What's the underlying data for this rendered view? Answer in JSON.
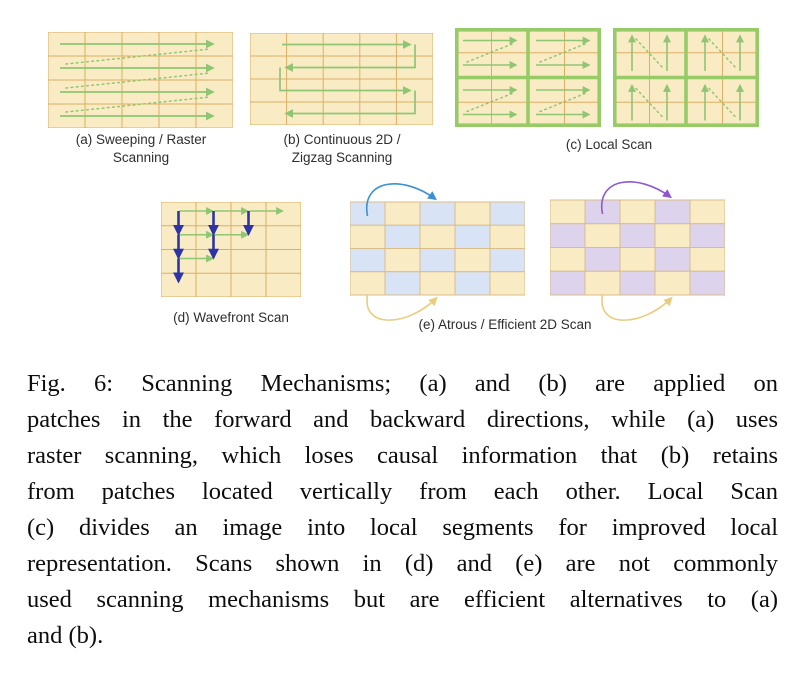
{
  "figure": {
    "caption_lines": [
      "Fig. 6: Scanning Mechanisms; (a) and (b) are applied on",
      "patches in the forward and backward directions, while (a) uses",
      "raster scanning, which loses causal information that (b) retains",
      "from patches located vertically from each other. Local Scan",
      "(c) divides an image into local segments for improved local",
      "representation. Scans shown in (d) and (e) are not commonly",
      "used scanning mechanisms but are efficient alternatives to (a)",
      "and (b)."
    ]
  },
  "panels": {
    "a": {
      "label_line1": "(a) Sweeping / Raster",
      "label_line2": "Scanning"
    },
    "b": {
      "label_line1": "(b) Continuous 2D /",
      "label_line2": "Zigzag Scanning"
    },
    "c": {
      "label": "(c) Local Scan"
    },
    "d": {
      "label": "(d) Wavefront Scan"
    },
    "e": {
      "label": "(e) Atrous / Efficient 2D Scan"
    }
  },
  "colors": {
    "cell_fill": "#f9ecc4",
    "cell_border": "#dcae66",
    "scan_green": "#8fc573",
    "local_border_green": "#97cb67",
    "wavefront_blue": "#2c35a3",
    "atrous_blue_cell": "#d8e4f6",
    "atrous_purple_cell": "#ddd3ec",
    "atrous_blue_arrow": "#3d8fd6",
    "atrous_purple_arrow": "#9058ce",
    "atrous_yellow_arrow": "#e9cd7c",
    "checker_cell_border": "#d9bd8a",
    "label_text": "#2e2e2e",
    "caption_text": "#0d0d0d"
  },
  "diagrams": {
    "grid_a": {
      "type": "raster",
      "cols": 5,
      "rows": 4,
      "arrow_direction": "right",
      "return_links": "dotted-diagonal"
    },
    "grid_b": {
      "type": "zigzag",
      "cols": 5,
      "rows": 4,
      "path": "right, down, left, down, right, down, left"
    },
    "local_left": {
      "type": "local-scan",
      "blocks": "2x2",
      "cells_per_block": "2x2",
      "arrow_direction": "right"
    },
    "local_right": {
      "type": "local-scan",
      "blocks": "2x2",
      "cells_per_block": "2x2",
      "arrow_direction": "up"
    },
    "grid_d": {
      "type": "wavefront",
      "cols": 4,
      "rows": 4,
      "green_row_arrows": [
        3,
        2,
        1
      ],
      "blue_col_arrows": [
        3,
        2,
        1
      ]
    },
    "checker_left": {
      "type": "atrous",
      "cols": 5,
      "rows": 4,
      "accent": "blue",
      "accent_parity": 0,
      "top_arc_cols": [
        0,
        2
      ],
      "bottom_arc_cols": [
        0,
        2
      ]
    },
    "checker_right": {
      "type": "atrous",
      "cols": 5,
      "rows": 4,
      "accent": "purple",
      "accent_parity": 1,
      "top_arc_cols": [
        1,
        3
      ],
      "bottom_arc_cols": [
        1,
        3
      ]
    }
  }
}
